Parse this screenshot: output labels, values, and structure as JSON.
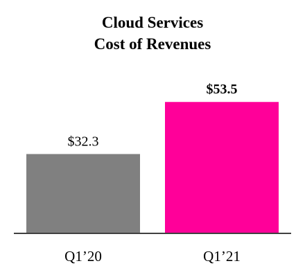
{
  "chart_data": {
    "type": "bar",
    "title": [
      "Cloud Services",
      "Cost of Revenues"
    ],
    "categories": [
      "Q1’20",
      "Q1’21"
    ],
    "values": [
      32.3,
      53.5
    ],
    "data_labels": [
      "$32.3",
      "$53.5"
    ],
    "bar_colors": [
      "#808080",
      "#ff0099"
    ],
    "label_bold": [
      false,
      true
    ],
    "ylim": [
      0,
      64
    ],
    "grid": false,
    "axis_color": "#404040"
  }
}
